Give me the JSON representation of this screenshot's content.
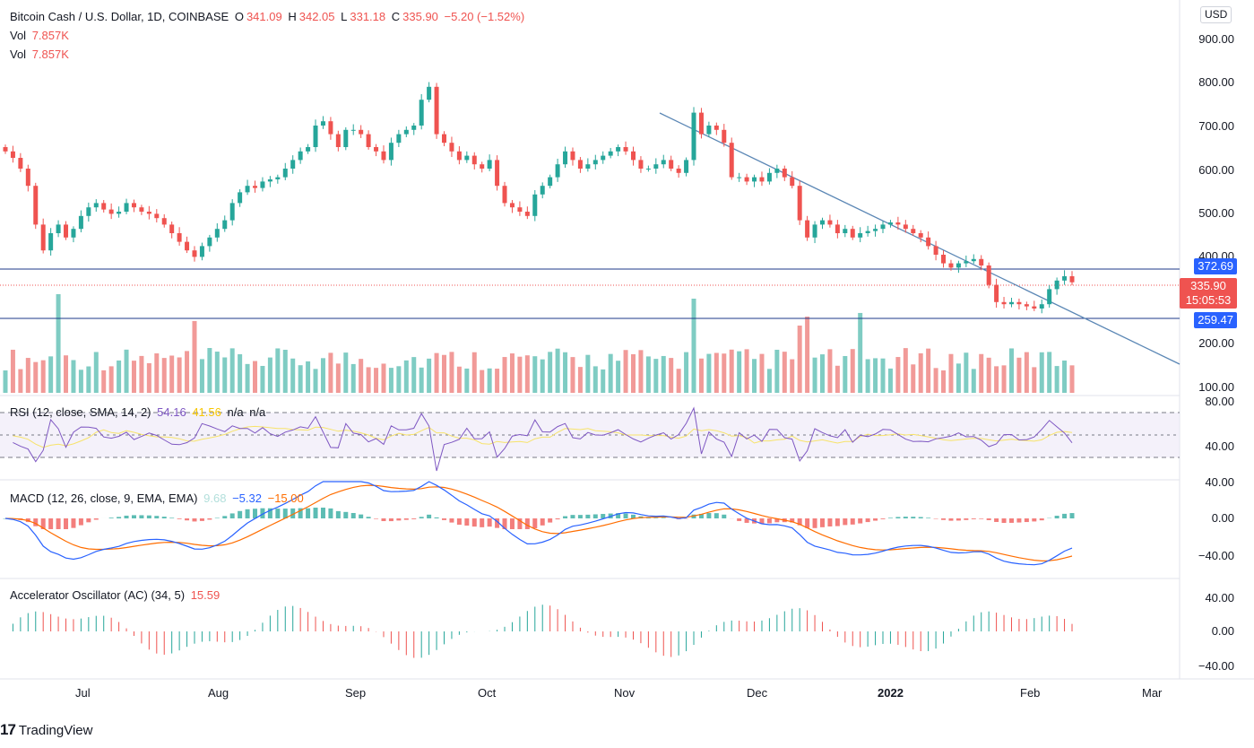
{
  "header": {
    "symbol": "Bitcoin Cash / U.S. Dollar, 1D, COINBASE",
    "o_label": "O",
    "o_value": "341.09",
    "h_label": "H",
    "h_value": "342.05",
    "l_label": "L",
    "l_value": "331.18",
    "c_label": "C",
    "c_value": "335.90",
    "change": "−5.20 (−1.52%)",
    "vol1_label": "Vol",
    "vol1_value": "7.857K",
    "vol2_label": "Vol",
    "vol2_value": "7.857K"
  },
  "currency_button": "USD",
  "price_axis": [
    "900.00",
    "800.00",
    "700.00",
    "600.00",
    "500.00",
    "400.00",
    "200.00",
    "100.00"
  ],
  "price_tags": {
    "resistance": "372.69",
    "last": "335.90",
    "countdown": "15:05:53",
    "support": "259.47"
  },
  "rsi": {
    "title": "RSI (12, close, SMA, 14, 2)",
    "value": "54.16",
    "sma": "41.56",
    "na1": "n/a",
    "na2": "n/a",
    "axis": [
      "80.00",
      "40.00"
    ]
  },
  "macd": {
    "title": "MACD (12, 26, close, 9, EMA, EMA)",
    "hist": "9.68",
    "macd": "−5.32",
    "signal": "−15.00",
    "axis": [
      "40.00",
      "0.00",
      "−40.00"
    ]
  },
  "ac": {
    "title": "Accelerator Oscillator (AC) (34, 5)",
    "value": "15.59",
    "axis": [
      "40.00",
      "0.00",
      "−40.00"
    ]
  },
  "time_axis": [
    "Jul",
    "Aug",
    "Sep",
    "Oct",
    "Nov",
    "Dec",
    "2022",
    "Feb",
    "Mar"
  ],
  "branding": "TradingView",
  "colors": {
    "up": "#26a69a",
    "down": "#ef5350",
    "level_line": "#1e3a8a",
    "trendline": "#5b87b5",
    "resistance_tag": "#2962ff",
    "last_tag": "#ef5350",
    "rsi_line": "#7e57c2",
    "rsi_sma": "#f7e36a",
    "macd_line": "#2962ff",
    "signal_line": "#ff6d00"
  },
  "chart_data": {
    "type": "candlestick",
    "symbol": "BCHUSD",
    "resistance_level": 372.69,
    "support_level": 259.47,
    "last_close": 335.9,
    "price_range": [
      100,
      920
    ],
    "closes": [
      640,
      625,
      600,
      560,
      470,
      410,
      450,
      470,
      440,
      460,
      490,
      510,
      520,
      505,
      495,
      500,
      520,
      510,
      500,
      495,
      485,
      470,
      450,
      430,
      410,
      395,
      420,
      440,
      460,
      480,
      520,
      545,
      560,
      555,
      570,
      575,
      580,
      600,
      620,
      640,
      650,
      700,
      710,
      680,
      650,
      690,
      690,
      680,
      650,
      640,
      620,
      660,
      680,
      690,
      700,
      760,
      790,
      680,
      660,
      640,
      620,
      630,
      610,
      600,
      620,
      560,
      520,
      510,
      500,
      490,
      540,
      560,
      580,
      610,
      640,
      620,
      600,
      610,
      620,
      630,
      640,
      650,
      640,
      620,
      600,
      600,
      610,
      620,
      600,
      590,
      620,
      730,
      680,
      700,
      690,
      660,
      580,
      580,
      570,
      580,
      570,
      590,
      600,
      580,
      560,
      480,
      440,
      470,
      480,
      470,
      450,
      460,
      440,
      450,
      455,
      460,
      470,
      475,
      470,
      460,
      450,
      440,
      420,
      400,
      380,
      370,
      380,
      385,
      390,
      375,
      330,
      290,
      285,
      290,
      285,
      280,
      275,
      285,
      320,
      340,
      350,
      336
    ],
    "volume_note": "Volume histogram beneath price; peaks in late June, early November and early December"
  }
}
